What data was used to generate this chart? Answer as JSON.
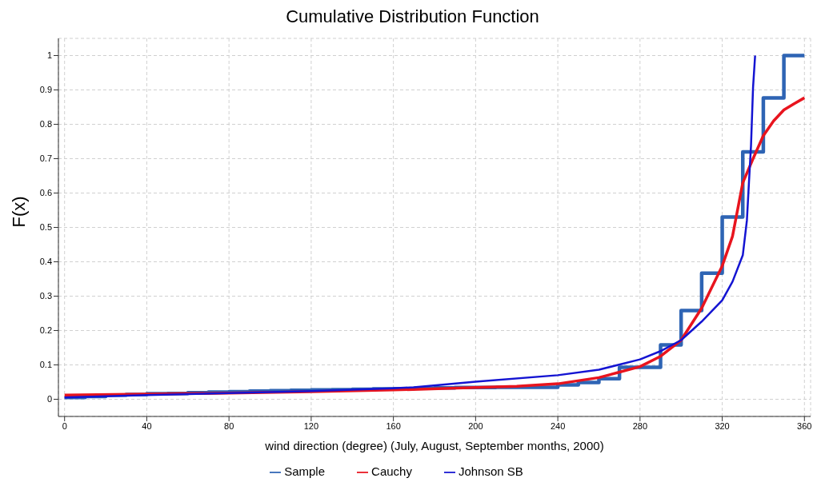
{
  "chart_data": {
    "type": "line",
    "title": "Cumulative Distribution Function",
    "xlabel": "wind direction (degree) (July, August, September months, 2000)",
    "ylabel": "F(x)",
    "xlim": [
      -3,
      363
    ],
    "ylim": [
      -0.05,
      1.05
    ],
    "xticks": [
      0,
      40,
      80,
      120,
      160,
      200,
      240,
      280,
      320,
      360
    ],
    "yticks": [
      0,
      0.1,
      0.2,
      0.3,
      0.4,
      0.5,
      0.6,
      0.7,
      0.8,
      0.9,
      1
    ],
    "grid": true,
    "legend": "bottom",
    "marker": "none",
    "series": [
      {
        "name": "Sample",
        "type": "step",
        "color": "#2e64b4",
        "x": [
          0,
          10,
          20,
          30,
          40,
          50,
          60,
          70,
          80,
          90,
          100,
          110,
          120,
          130,
          140,
          150,
          160,
          170,
          180,
          190,
          200,
          210,
          220,
          230,
          240,
          250,
          260,
          270,
          280,
          290,
          300,
          310,
          320,
          330,
          340,
          350,
          360
        ],
        "values": [
          0.005,
          0.008,
          0.012,
          0.014,
          0.016,
          0.017,
          0.019,
          0.021,
          0.022,
          0.024,
          0.025,
          0.026,
          0.027,
          0.028,
          0.029,
          0.03,
          0.031,
          0.032,
          0.033,
          0.034,
          0.034,
          0.035,
          0.035,
          0.035,
          0.042,
          0.049,
          0.06,
          0.093,
          0.093,
          0.158,
          0.258,
          0.367,
          0.53,
          0.72,
          0.877,
          1.0,
          1.0
        ]
      },
      {
        "name": "Cauchy",
        "color": "#e8141e",
        "x": [
          0,
          40,
          80,
          120,
          160,
          200,
          220,
          240,
          260,
          270,
          280,
          290,
          300,
          310,
          320,
          325,
          330,
          335,
          340,
          345,
          350,
          355,
          360
        ],
        "values": [
          0.012,
          0.015,
          0.018,
          0.022,
          0.027,
          0.034,
          0.038,
          0.045,
          0.063,
          0.079,
          0.095,
          0.125,
          0.172,
          0.265,
          0.388,
          0.474,
          0.63,
          0.7,
          0.767,
          0.81,
          0.842,
          0.86,
          0.877
        ]
      },
      {
        "name": "Johnson SB",
        "color": "#1414d2",
        "x": [
          0,
          40,
          80,
          120,
          160,
          170,
          200,
          240,
          260,
          280,
          290,
          300,
          310,
          320,
          325,
          330,
          332,
          333,
          334,
          335,
          336
        ],
        "values": [
          0.005,
          0.012,
          0.018,
          0.024,
          0.032,
          0.035,
          0.051,
          0.07,
          0.086,
          0.116,
          0.14,
          0.172,
          0.226,
          0.288,
          0.342,
          0.419,
          0.52,
          0.63,
          0.737,
          0.907,
          1.0
        ]
      }
    ]
  }
}
